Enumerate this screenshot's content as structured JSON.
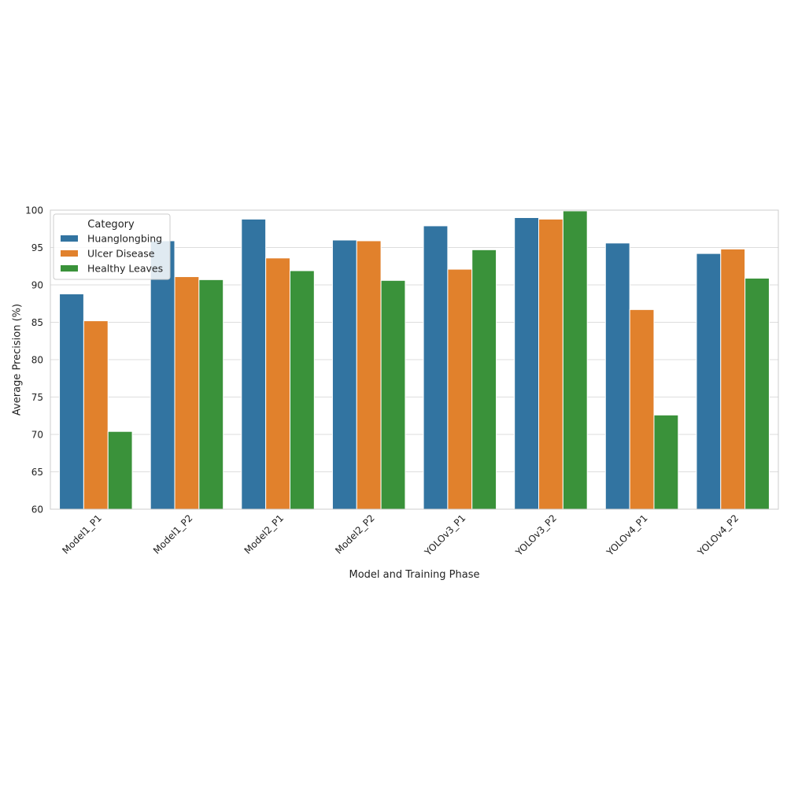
{
  "chart_data": {
    "type": "bar",
    "xlabel": "Model and Training Phase",
    "ylabel": "Average Precision (%)",
    "ylim": [
      60,
      100
    ],
    "yticks": [
      "60",
      "65",
      "70",
      "75",
      "80",
      "85",
      "90",
      "95",
      "100"
    ],
    "grid": "horizontal",
    "legend": {
      "title": "Category",
      "placement": "top-left"
    },
    "categories": [
      "Model1_P1",
      "Model1_P2",
      "Model2_P1",
      "Model2_P2",
      "YOLOv3_P1",
      "YOLOv3_P2",
      "YOLOv4_P1",
      "YOLOv4_P2"
    ],
    "series": [
      {
        "name": "Huanglongbing",
        "color": "#3274a1",
        "values": [
          88.8,
          95.9,
          98.8,
          96.0,
          97.9,
          99.0,
          95.6,
          94.2
        ]
      },
      {
        "name": "Ulcer Disease",
        "color": "#e1812c",
        "values": [
          85.2,
          91.1,
          93.6,
          95.9,
          92.1,
          98.8,
          86.7,
          94.8
        ]
      },
      {
        "name": "Healthy Leaves",
        "color": "#3a923a",
        "values": [
          70.4,
          90.7,
          91.9,
          90.6,
          94.7,
          99.9,
          72.6,
          90.9
        ]
      }
    ]
  }
}
